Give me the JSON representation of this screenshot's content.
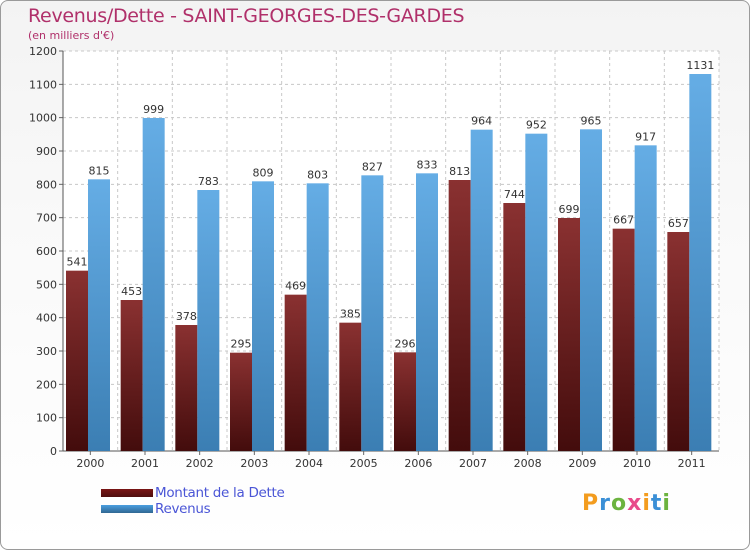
{
  "header": {
    "title": "Revenus/Dette - SAINT-GEORGES-DES-GARDES",
    "subtitle": "(en milliers d'€)"
  },
  "chart_data": {
    "type": "bar",
    "title": "Revenus/Dette - SAINT-GEORGES-DES-GARDES",
    "subtitle": "(en milliers d'€)",
    "categories": [
      "2000",
      "2001",
      "2002",
      "2003",
      "2004",
      "2005",
      "2006",
      "2007",
      "2008",
      "2009",
      "2010",
      "2011"
    ],
    "series": [
      {
        "name": "Montant de la Dette",
        "color": "#7a1515",
        "values": [
          541,
          453,
          378,
          295,
          469,
          385,
          296,
          813,
          744,
          699,
          667,
          657
        ]
      },
      {
        "name": "Revenus",
        "color": "#4a9ee0",
        "values": [
          815,
          999,
          783,
          809,
          803,
          827,
          833,
          964,
          952,
          965,
          917,
          1131
        ]
      }
    ],
    "yticks": [
      0,
      100,
      200,
      300,
      400,
      500,
      600,
      700,
      800,
      900,
      1000,
      1100,
      1200
    ],
    "ylim": [
      0,
      1200
    ],
    "grid": true,
    "legend": "bottom-left"
  },
  "legend": {
    "items": [
      {
        "label": "Montant de la Dette",
        "color": "#7a1515"
      },
      {
        "label": "Revenus",
        "color": "#4a9ee0"
      }
    ]
  },
  "logo": {
    "letters": [
      "P",
      "r",
      "o",
      "x",
      "i",
      "t",
      "i"
    ],
    "colors": [
      "#f39c1e",
      "#3a8fd6",
      "#6cb33f",
      "#e84a8a",
      "#f39c1e",
      "#3a8fd6",
      "#6cb33f"
    ]
  }
}
